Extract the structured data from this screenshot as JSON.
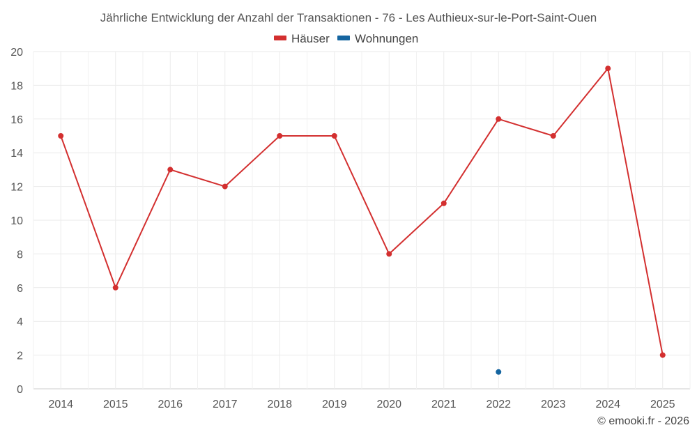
{
  "chart_data": {
    "type": "line",
    "title": "Jährliche Entwicklung der Anzahl der Transaktionen - 76 - Les Authieux-sur-le-Port-Saint-Ouen",
    "categories": [
      "2014",
      "2015",
      "2016",
      "2017",
      "2018",
      "2019",
      "2020",
      "2021",
      "2022",
      "2023",
      "2024",
      "2025"
    ],
    "series": [
      {
        "name": "Häuser",
        "color": "#d32f2f",
        "values": [
          15,
          6,
          13,
          12,
          15,
          15,
          8,
          11,
          16,
          15,
          19,
          2
        ]
      },
      {
        "name": "Wohnungen",
        "color": "#1565a0",
        "values": [
          null,
          null,
          null,
          null,
          null,
          null,
          null,
          null,
          1,
          null,
          null,
          null
        ]
      }
    ],
    "xlabel": "",
    "ylabel": "",
    "ylim": [
      0,
      20
    ],
    "yticks": [
      0,
      2,
      4,
      6,
      8,
      10,
      12,
      14,
      16,
      18,
      20
    ],
    "grid": true,
    "legend": "top-center"
  },
  "credit": "© emooki.fr - 2026"
}
